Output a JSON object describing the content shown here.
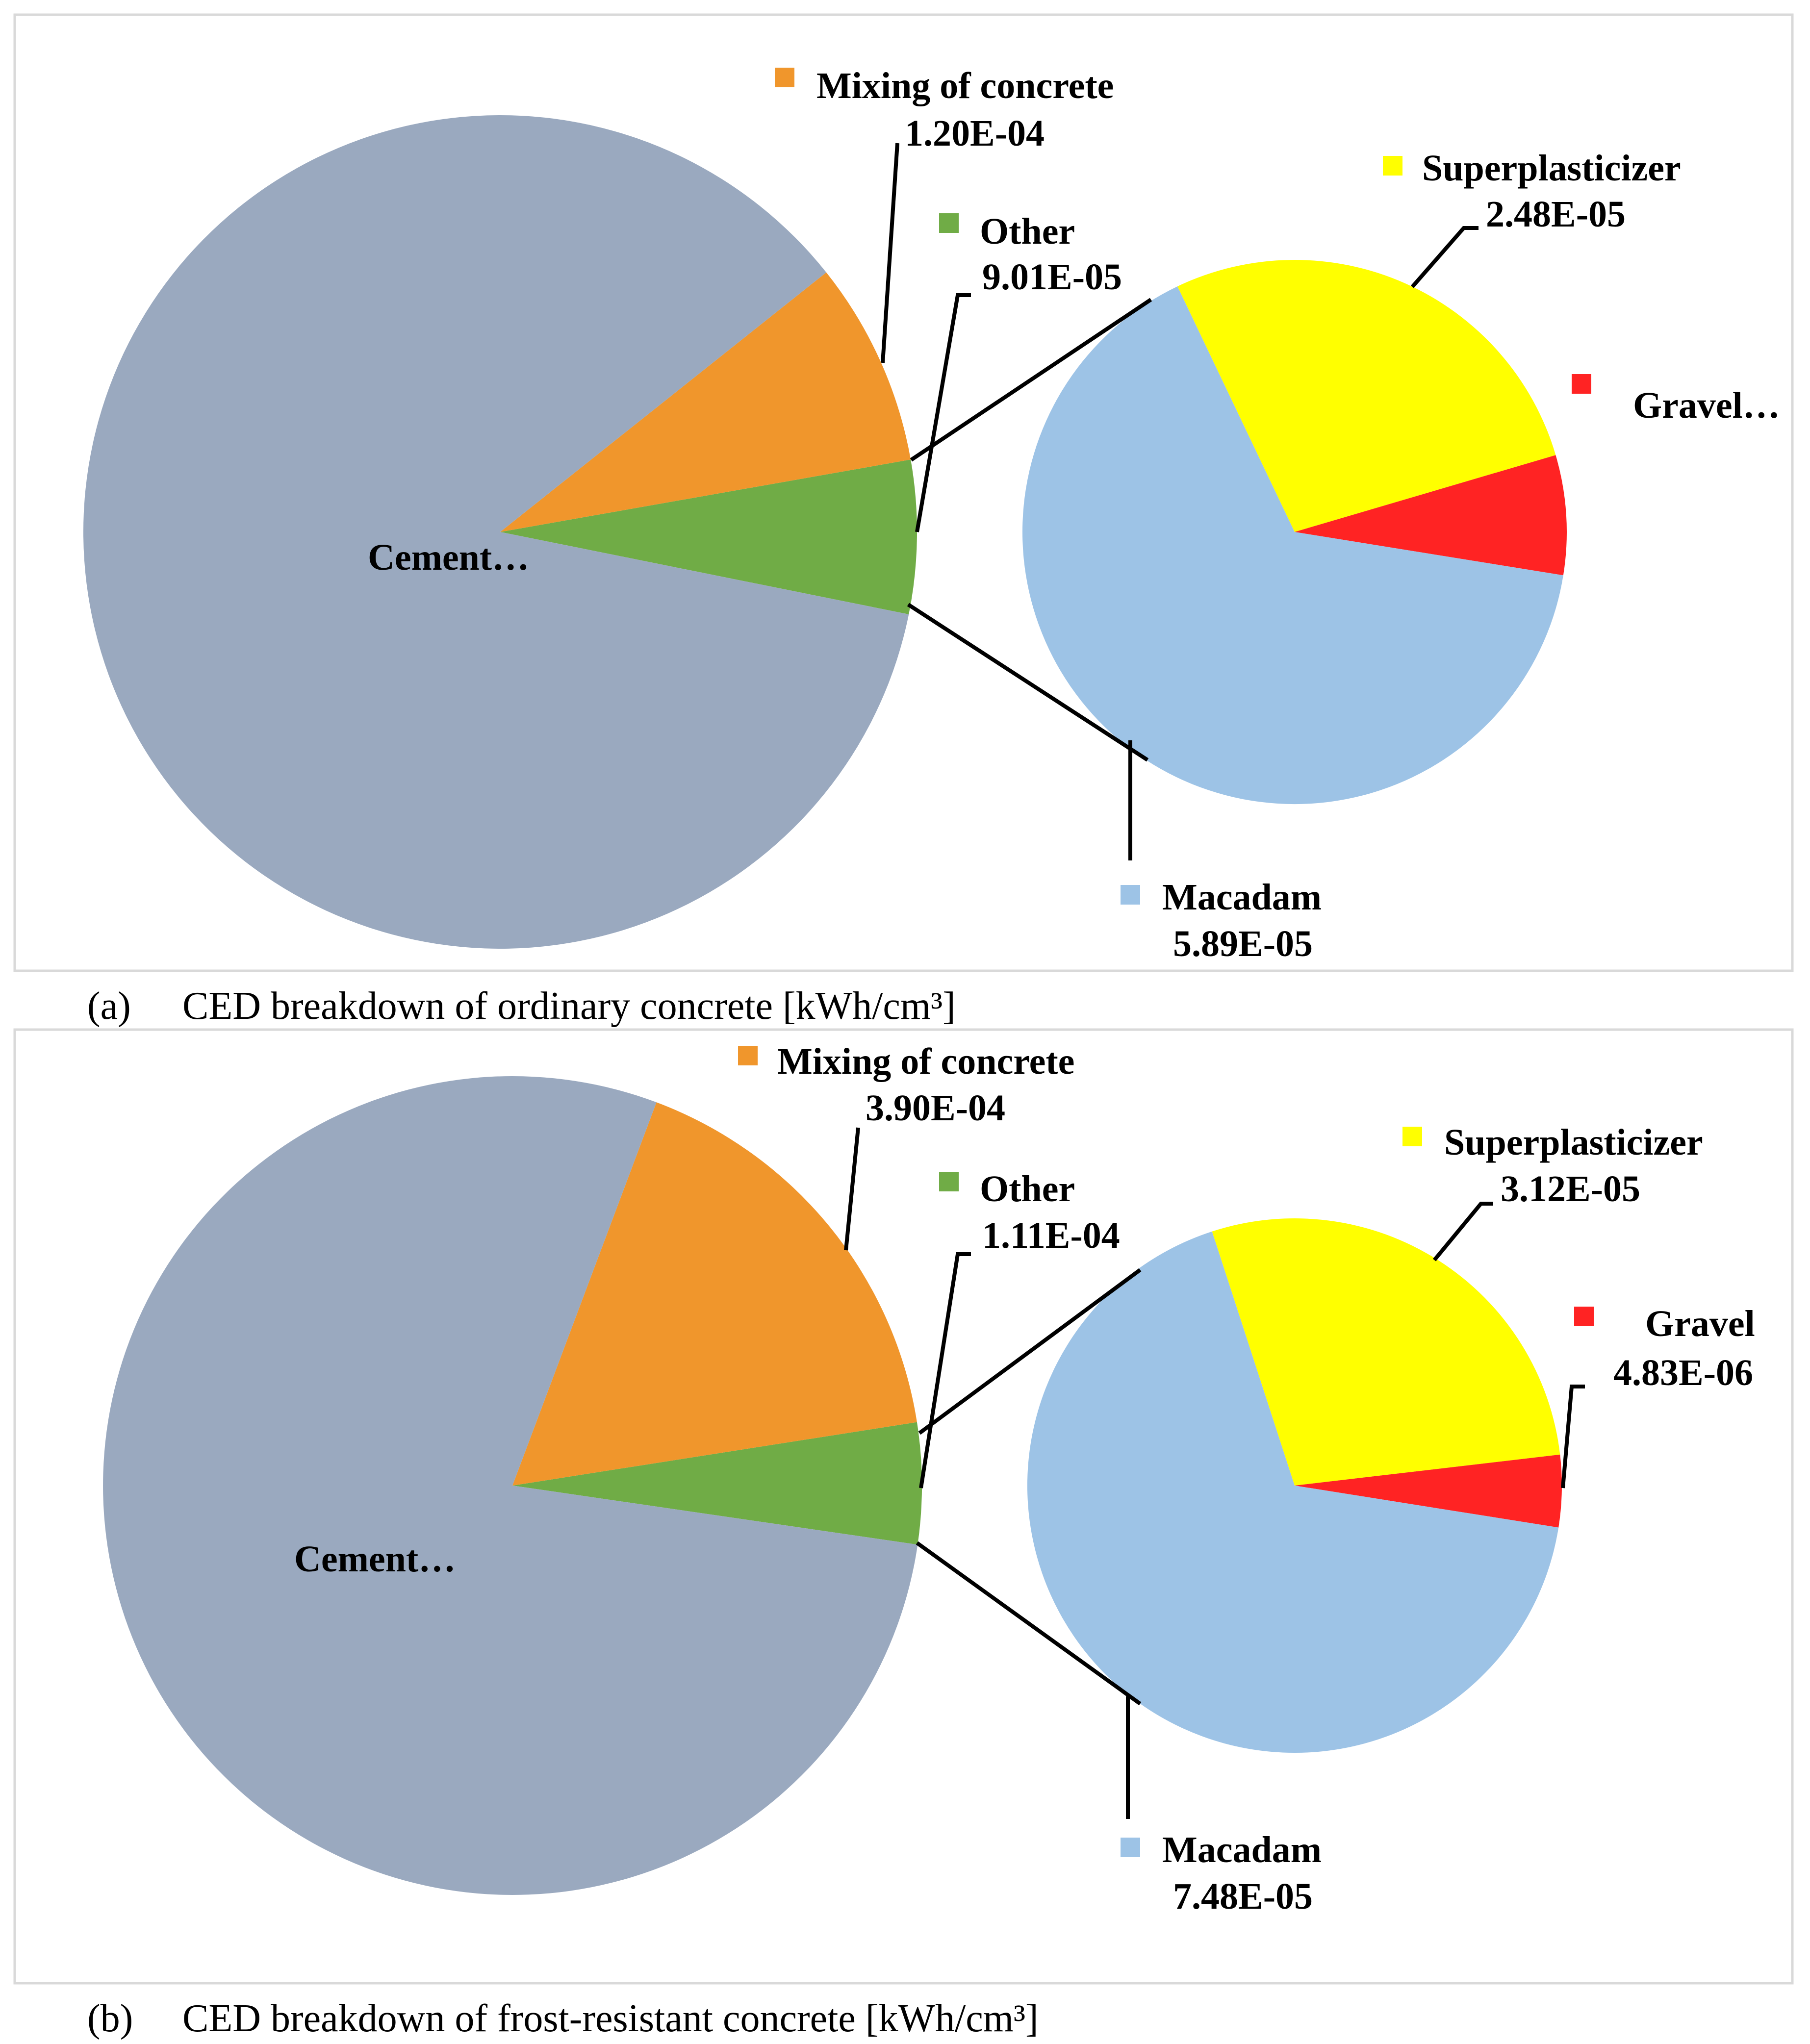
{
  "chart_data": [
    {
      "type": "pie",
      "subtype": "pie-of-pie",
      "caption": "(a)  CED breakdown of ordinary concrete [kWh/cm³]",
      "caption_prefix": "(a)",
      "caption_text": "CED breakdown of ordinary concrete [kWh/cm³]",
      "main_pie": [
        {
          "name": "Cement…",
          "value": 0.001305,
          "value_label": "",
          "color": "#9aa9bf"
        },
        {
          "name": "Mixing of concrete",
          "value": 0.00012,
          "value_label": "1.20E-04",
          "color": "#f0962c"
        },
        {
          "name": "Other",
          "value": 9.01e-05,
          "value_label": "9.01E-05",
          "color": "#70ac46"
        }
      ],
      "secondary_pie": [
        {
          "name": "Superplasticizer",
          "value": 2.48e-05,
          "value_label": "2.48E-05",
          "color": "#ffff00"
        },
        {
          "name": "Gravel…",
          "value": 6.4e-06,
          "value_label": "",
          "color": "#ff2323"
        },
        {
          "name": "Macadam",
          "value": 5.89e-05,
          "value_label": "5.89E-05",
          "color": "#9dc3e6"
        }
      ]
    },
    {
      "type": "pie",
      "subtype": "pie-of-pie",
      "caption": "(b)  CED breakdown of frost-resistant concrete [kWh/cm³]",
      "caption_prefix": "(b)",
      "caption_text": "CED breakdown of frost-resistant concrete [kWh/cm³]",
      "main_pie": [
        {
          "name": "Cement…",
          "value": 0.00182,
          "value_label": "",
          "color": "#9aa9bf"
        },
        {
          "name": "Mixing of concrete",
          "value": 0.00039,
          "value_label": "3.90E-04",
          "color": "#f0962c"
        },
        {
          "name": "Other",
          "value": 0.000111,
          "value_label": "1.11E-04",
          "color": "#70ac46"
        }
      ],
      "secondary_pie": [
        {
          "name": "Superplasticizer",
          "value": 3.12e-05,
          "value_label": "3.12E-05",
          "color": "#ffff00"
        },
        {
          "name": "Gravel",
          "value": 4.83e-06,
          "value_label": "4.83E-06",
          "color": "#ff2323"
        },
        {
          "name": "Macadam",
          "value": 7.48e-05,
          "value_label": "7.48E-05",
          "color": "#9dc3e6"
        }
      ]
    }
  ]
}
